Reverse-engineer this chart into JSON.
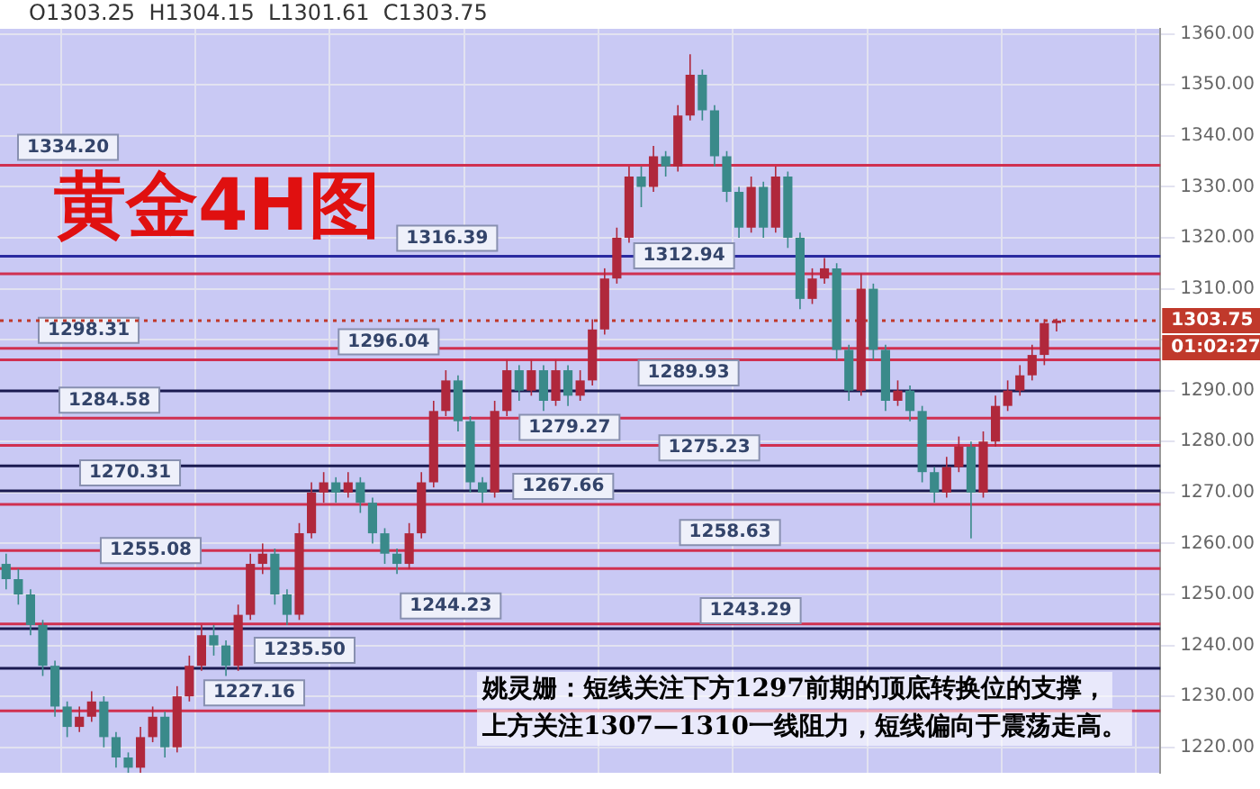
{
  "chart_data": {
    "type": "candlestick",
    "title": "黄金4H图",
    "categories": [
      null,
      null,
      null,
      null,
      null,
      null,
      null,
      null,
      null,
      null,
      null,
      null,
      null,
      null,
      null,
      null,
      null,
      null,
      null,
      null,
      null,
      null,
      null,
      null,
      null,
      null,
      null,
      null,
      null,
      null,
      null,
      null,
      null,
      null,
      null,
      null,
      null,
      null,
      null,
      null,
      null,
      null,
      null,
      null,
      null,
      null,
      null,
      null,
      null,
      null,
      null,
      null,
      null,
      null,
      null,
      null,
      null,
      null,
      null,
      null,
      null,
      null,
      null,
      null,
      null,
      null,
      null,
      null,
      null,
      null,
      null,
      null,
      null,
      null,
      null,
      null,
      null,
      null,
      null,
      null,
      null,
      null,
      null,
      null,
      null,
      null,
      null,
      null,
      null,
      null,
      null,
      null,
      null,
      null,
      null
    ],
    "ohlc": [
      [
        1256,
        1258,
        1251,
        1253
      ],
      [
        1253,
        1255,
        1248,
        1250
      ],
      [
        1250,
        1251,
        1242,
        1244
      ],
      [
        1244,
        1245,
        1234,
        1236
      ],
      [
        1236,
        1237,
        1226,
        1228
      ],
      [
        1228,
        1229,
        1222,
        1224
      ],
      [
        1224,
        1228,
        1223,
        1226
      ],
      [
        1226,
        1231,
        1225,
        1229
      ],
      [
        1229,
        1230,
        1220,
        1222
      ],
      [
        1222,
        1223,
        1216,
        1218
      ],
      [
        1218,
        1219,
        1214,
        1216
      ],
      [
        1216,
        1224,
        1215,
        1222
      ],
      [
        1222,
        1228,
        1221,
        1226
      ],
      [
        1226,
        1227,
        1218,
        1220
      ],
      [
        1220,
        1232,
        1219,
        1230
      ],
      [
        1230,
        1238,
        1229,
        1236
      ],
      [
        1236,
        1244,
        1235,
        1242
      ],
      [
        1242,
        1244,
        1238,
        1240
      ],
      [
        1240,
        1241,
        1234,
        1236
      ],
      [
        1236,
        1248,
        1235,
        1246
      ],
      [
        1246,
        1258,
        1245,
        1256
      ],
      [
        1256,
        1260,
        1254,
        1258
      ],
      [
        1258,
        1259,
        1248,
        1250
      ],
      [
        1250,
        1251,
        1244,
        1246
      ],
      [
        1246,
        1264,
        1245,
        1262
      ],
      [
        1262,
        1272,
        1261,
        1270
      ],
      [
        1270,
        1274,
        1268,
        1272
      ],
      [
        1272,
        1273,
        1268,
        1270
      ],
      [
        1270,
        1274,
        1269,
        1272
      ],
      [
        1272,
        1273,
        1266,
        1268
      ],
      [
        1268,
        1269,
        1260,
        1262
      ],
      [
        1262,
        1263,
        1256,
        1258
      ],
      [
        1258,
        1259,
        1254,
        1256
      ],
      [
        1256,
        1264,
        1255,
        1262
      ],
      [
        1262,
        1274,
        1261,
        1272
      ],
      [
        1272,
        1288,
        1271,
        1286
      ],
      [
        1286,
        1294,
        1285,
        1292
      ],
      [
        1292,
        1293,
        1282,
        1284
      ],
      [
        1284,
        1285,
        1270,
        1272
      ],
      [
        1272,
        1273,
        1268,
        1270
      ],
      [
        1270,
        1288,
        1269,
        1286
      ],
      [
        1286,
        1296,
        1285,
        1294
      ],
      [
        1294,
        1295,
        1288,
        1290
      ],
      [
        1290,
        1296,
        1289,
        1294
      ],
      [
        1294,
        1295,
        1286,
        1288
      ],
      [
        1288,
        1296,
        1287,
        1294
      ],
      [
        1294,
        1295,
        1287,
        1289
      ],
      [
        1289,
        1294,
        1288,
        1292
      ],
      [
        1292,
        1304,
        1291,
        1302
      ],
      [
        1302,
        1314,
        1301,
        1312
      ],
      [
        1312,
        1322,
        1311,
        1320
      ],
      [
        1320,
        1334,
        1319,
        1332
      ],
      [
        1332,
        1334,
        1326,
        1330
      ],
      [
        1330,
        1338,
        1329,
        1336
      ],
      [
        1336,
        1337,
        1332,
        1334
      ],
      [
        1334,
        1346,
        1333,
        1344
      ],
      [
        1344,
        1356,
        1343,
        1352
      ],
      [
        1352,
        1353,
        1343,
        1345
      ],
      [
        1345,
        1346,
        1334,
        1336
      ],
      [
        1336,
        1337,
        1327,
        1329
      ],
      [
        1329,
        1330,
        1320,
        1322
      ],
      [
        1322,
        1332,
        1321,
        1330
      ],
      [
        1330,
        1331,
        1320,
        1322
      ],
      [
        1322,
        1334,
        1321,
        1332
      ],
      [
        1332,
        1333,
        1318,
        1320
      ],
      [
        1320,
        1321,
        1306,
        1308
      ],
      [
        1308,
        1314,
        1307,
        1312
      ],
      [
        1312,
        1316,
        1311,
        1314
      ],
      [
        1314,
        1315,
        1296,
        1298
      ],
      [
        1298,
        1299,
        1288,
        1290
      ],
      [
        1290,
        1313,
        1289,
        1310
      ],
      [
        1310,
        1311,
        1296,
        1298
      ],
      [
        1298,
        1299,
        1286,
        1288
      ],
      [
        1288,
        1292,
        1287,
        1290
      ],
      [
        1290,
        1291,
        1284,
        1286
      ],
      [
        1286,
        1287,
        1272,
        1274
      ],
      [
        1274,
        1275,
        1268,
        1270
      ],
      [
        1270,
        1277,
        1269,
        1275
      ],
      [
        1275,
        1281,
        1274,
        1279
      ],
      [
        1279,
        1280,
        1261,
        1270
      ],
      [
        1270,
        1282,
        1269,
        1280
      ],
      [
        1280,
        1289,
        1279,
        1287
      ],
      [
        1287,
        1292,
        1286,
        1290
      ],
      [
        1290,
        1295,
        1289,
        1293
      ],
      [
        1293,
        1299,
        1292,
        1297
      ],
      [
        1297,
        1304,
        1295,
        1303.25
      ],
      [
        1303.25,
        1304.15,
        1301.61,
        1303.75
      ],
      null,
      null,
      null,
      null,
      null,
      null,
      null,
      null
    ],
    "colors": [
      "#3a8a8a",
      "#3a8a8a",
      "#3a8a8a",
      "#3a8a8a",
      "#3a8a8a",
      "#3a8a8a",
      "#b0283c",
      "#b0283c",
      "#3a8a8a",
      "#3a8a8a",
      "#3a8a8a",
      "#b0283c",
      "#b0283c",
      "#3a8a8a",
      "#b0283c",
      "#b0283c",
      "#b0283c",
      "#3a8a8a",
      "#3a8a8a",
      "#b0283c",
      "#b0283c",
      "#b0283c",
      "#3a8a8a",
      "#3a8a8a",
      "#b0283c",
      "#b0283c",
      "#b0283c",
      "#3a8a8a",
      "#b0283c",
      "#3a8a8a",
      "#3a8a8a",
      "#3a8a8a",
      "#3a8a8a",
      "#b0283c",
      "#b0283c",
      "#b0283c",
      "#b0283c",
      "#3a8a8a",
      "#3a8a8a",
      "#3a8a8a",
      "#b0283c",
      "#b0283c",
      "#3a8a8a",
      "#b0283c",
      "#3a8a8a",
      "#b0283c",
      "#3a8a8a",
      "#b0283c",
      "#b0283c",
      "#b0283c",
      "#b0283c",
      "#b0283c",
      "#3a8a8a",
      "#b0283c",
      "#3a8a8a",
      "#b0283c",
      "#b0283c",
      "#3a8a8a",
      "#3a8a8a",
      "#3a8a8a",
      "#3a8a8a",
      "#b0283c",
      "#3a8a8a",
      "#b0283c",
      "#3a8a8a",
      "#3a8a8a",
      "#b0283c",
      "#b0283c",
      "#3a8a8a",
      "#3a8a8a",
      "#b0283c",
      "#3a8a8a",
      "#3a8a8a",
      "#b0283c",
      "#3a8a8a",
      "#3a8a8a",
      "#3a8a8a",
      "#b0283c",
      "#b0283c",
      "#3a8a8a",
      "#b0283c",
      "#b0283c",
      "#b0283c",
      "#b0283c",
      "#b0283c",
      "#b0283c",
      "#b0283c",
      null,
      null,
      null,
      null,
      null,
      null,
      null,
      null
    ],
    "ylim": [
      1215,
      1361
    ],
    "yticks": [
      {
        "value": 1220,
        "label": "1220.00"
      },
      {
        "value": 1230,
        "label": "1230.00"
      },
      {
        "value": 1240,
        "label": "1240.00"
      },
      {
        "value": 1250,
        "label": "1250.00"
      },
      {
        "value": 1260,
        "label": "1260.00"
      },
      {
        "value": 1270,
        "label": "1270.00"
      },
      {
        "value": 1280,
        "label": "1280.00"
      },
      {
        "value": 1290,
        "label": "1290.00"
      },
      {
        "value": 1300,
        "label": null
      },
      {
        "value": 1310,
        "label": "1310.00"
      },
      {
        "value": 1320,
        "label": "1320.00"
      },
      {
        "value": 1330,
        "label": "1330.00"
      },
      {
        "value": 1340,
        "label": "1340.00"
      },
      {
        "value": 1350,
        "label": "1350.00"
      },
      {
        "value": 1360,
        "label": "1360.00"
      }
    ],
    "grid": true,
    "ref_lines": [
      {
        "axis": "y",
        "value": 1334.2,
        "label": "1334.20",
        "color": "#d03050"
      },
      {
        "axis": "y",
        "value": 1316.39,
        "label": "1316.39",
        "color": "#2a2aa0"
      },
      {
        "axis": "y",
        "value": 1312.94,
        "label": "1312.94",
        "color": "#d03050"
      },
      {
        "axis": "y",
        "value": 1298.31,
        "label": "1298.31",
        "color": "#d03050"
      },
      {
        "axis": "y",
        "value": 1296.04,
        "label": "1296.04",
        "color": "#d03050"
      },
      {
        "axis": "y",
        "value": 1289.93,
        "label": "1289.93",
        "color": "#1a1a50"
      },
      {
        "axis": "y",
        "value": 1284.58,
        "label": "1284.58",
        "color": "#d03050"
      },
      {
        "axis": "y",
        "value": 1279.27,
        "label": "1279.27",
        "color": "#d03050"
      },
      {
        "axis": "y",
        "value": 1275.23,
        "label": "1275.23",
        "color": "#1a1a50"
      },
      {
        "axis": "y",
        "value": 1270.31,
        "label": "1270.31",
        "color": "#1a1a50"
      },
      {
        "axis": "y",
        "value": 1267.66,
        "label": "1267.66",
        "color": "#d03050"
      },
      {
        "axis": "y",
        "value": 1258.63,
        "label": "1258.63",
        "color": "#d03050"
      },
      {
        "axis": "y",
        "value": 1255.08,
        "label": "1255.08",
        "color": "#d03050"
      },
      {
        "axis": "y",
        "value": 1244.23,
        "label": "1244.23",
        "color": "#d03050"
      },
      {
        "axis": "y",
        "value": 1243.29,
        "label": "1243.29",
        "color": "#1a1a50"
      },
      {
        "axis": "y",
        "value": 1235.5,
        "label": "1235.50",
        "color": "#1a1a50"
      },
      {
        "axis": "y",
        "value": 1227.16,
        "label": "1227.16",
        "color": "#d03050"
      },
      {
        "axis": "y",
        "value": 1303.75,
        "label": "1303.75",
        "color": "#c0392b",
        "line_style": "dotted"
      }
    ],
    "annotations": [
      "O1303.25  H1304.15  L1301.61  C1303.75",
      "01:02:27",
      "姚灵姗：短线关注下方1297前期的顶底转换位的支撑，",
      "上方关注1307—1310一线阻力，短线偏向于震荡走高。"
    ]
  }
}
